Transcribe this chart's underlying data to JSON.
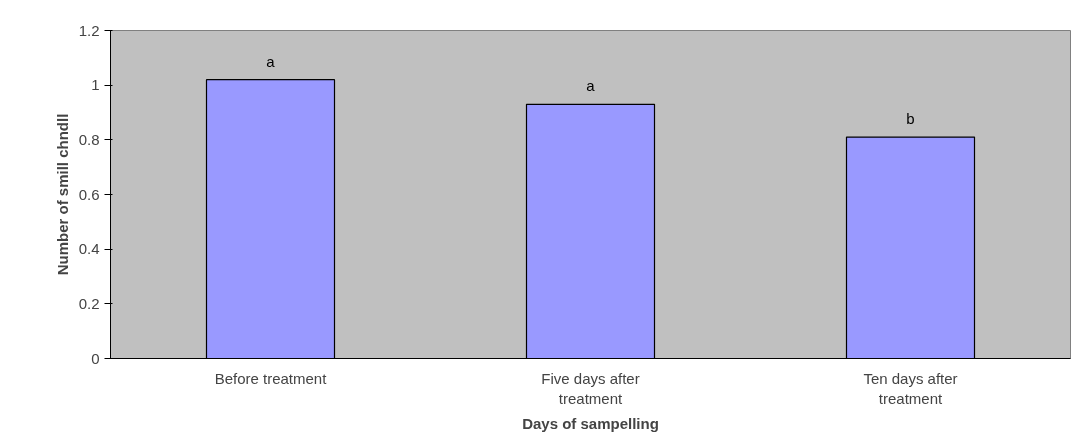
{
  "chart_data": {
    "type": "bar",
    "categories": [
      "Before treatment",
      "Five days after\ntreatment",
      "Ten days after\ntreatment"
    ],
    "values": [
      1.02,
      0.93,
      0.81
    ],
    "color": "#9999ff",
    "xlabel": "Days of sampelling",
    "ylabel": "Number of smill chndll",
    "ylim": [
      0,
      1.2
    ],
    "yticks": [
      0,
      0.2,
      0.4,
      0.6,
      0.8,
      1,
      1.2
    ],
    "grid": false,
    "annotations": [
      {
        "text": "a",
        "x": "Before treatment",
        "y": 1.02
      },
      {
        "text": "a",
        "x": "Five days after\ntreatment",
        "y": 0.93
      },
      {
        "text": "b",
        "x": "Ten days after\ntreatment",
        "y": 0.81
      }
    ]
  }
}
